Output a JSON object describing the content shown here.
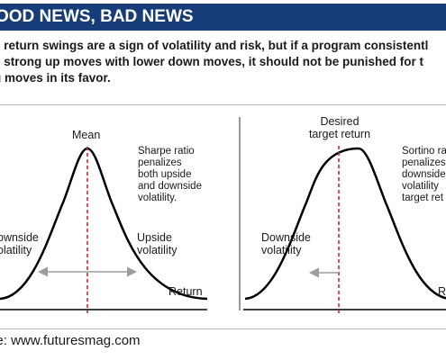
{
  "header": {
    "title": "OOD NEWS, BAD NEWS"
  },
  "intro": {
    "lines": [
      "e return swings are a sign of volatility and risk, but if a program consistentl",
      "s strong up moves with lower down moves, it should not be punished for t",
      "g moves in its favor."
    ]
  },
  "left_panel": {
    "mean_label": "Mean",
    "note_lines": [
      "Sharpe ratio",
      "penalizes",
      "both upside",
      "and downside",
      "volatility."
    ],
    "downside_lines": [
      "ownside",
      "olatility"
    ],
    "upside_lines": [
      "Upside",
      "volatility"
    ],
    "axis_label": "Return"
  },
  "right_panel": {
    "target_lines": [
      "Desired",
      "target return"
    ],
    "note_lines": [
      "Sortino ra",
      "penalizes",
      "downside",
      "volatility",
      "target ret"
    ],
    "downside_lines": [
      "Downside",
      "volatility"
    ],
    "axis_label": "R"
  },
  "colors": {
    "title_bg": "#173c7a",
    "dashed_line": "#d9222a",
    "arrow": "#9e9e9e"
  },
  "footer": {
    "source": "ce: www.futuresmag.com"
  }
}
